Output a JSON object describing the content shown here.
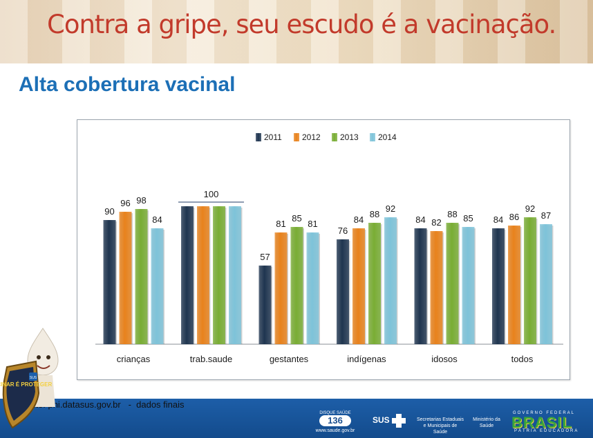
{
  "banner": {
    "title": "Contra a gripe, seu escudo é a vacinação."
  },
  "heading": "Alta cobertura vacinal",
  "source": "Fonte: pni.datasus.gov.br   -  dados finais",
  "footer": {
    "disque_label": "DISQUE SAÚDE",
    "disque_number": "136",
    "disque_url": "www.saude.gov.br",
    "sus": "SUS",
    "secretarias": "Secretarias Estaduais e Municipais de Saúde",
    "ministerio": "Ministério da Saúde",
    "governo": "GOVERNO FEDERAL",
    "brasil": "BRASIL",
    "patria": "PÁTRIA EDUCADORA"
  },
  "mascot": {
    "shield_text": "VACINAR É PROTEGER",
    "badge": "SUS"
  },
  "colors": {
    "2011": "#1f3550",
    "2012": "#e8821c",
    "2013": "#79ad34",
    "2014": "#7ec3d9"
  },
  "chart_data": {
    "type": "bar",
    "categories": [
      "crianças",
      "trab.saude",
      "gestantes",
      "indígenas",
      "idosos",
      "todos"
    ],
    "series": [
      {
        "name": "2011",
        "values": [
          90,
          100,
          57,
          76,
          84,
          84
        ]
      },
      {
        "name": "2012",
        "values": [
          96,
          100,
          81,
          84,
          82,
          86
        ]
      },
      {
        "name": "2013",
        "values": [
          98,
          100,
          85,
          88,
          88,
          92
        ]
      },
      {
        "name": "2014",
        "values": [
          84,
          100,
          81,
          92,
          85,
          87
        ]
      }
    ],
    "data_labels": [
      [
        "90",
        "96",
        "98",
        "84"
      ],
      [
        "100"
      ],
      [
        "57",
        "81",
        "85",
        "81"
      ],
      [
        "76",
        "84",
        "88",
        "92"
      ],
      [
        "84",
        "82",
        "88",
        "85"
      ],
      [
        "84",
        "86",
        "92",
        "87"
      ]
    ],
    "ylim": [
      0,
      100
    ],
    "legend_position": "top-center",
    "grid": false
  }
}
